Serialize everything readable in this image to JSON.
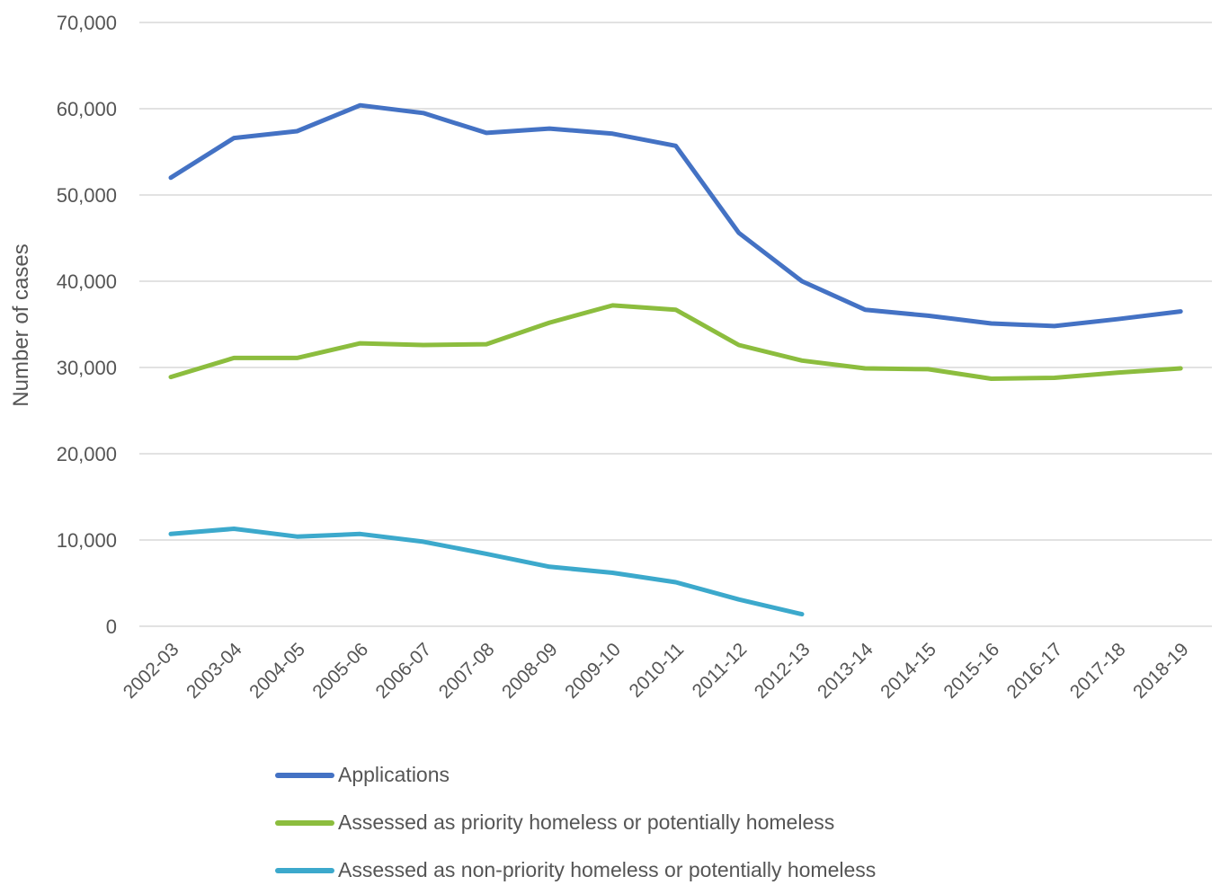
{
  "chart_data": {
    "type": "line",
    "title": "",
    "xlabel": "",
    "ylabel": "Number of cases",
    "ylim": [
      0,
      70000
    ],
    "yticks": [
      "0",
      "10,000",
      "20,000",
      "30,000",
      "40,000",
      "50,000",
      "60,000",
      "70,000"
    ],
    "ytick_values": [
      0,
      10000,
      20000,
      30000,
      40000,
      50000,
      60000,
      70000
    ],
    "grid": true,
    "legend_position": "bottom",
    "categories": [
      "2002-03",
      "2003-04",
      "2004-05",
      "2005-06",
      "2006-07",
      "2007-08",
      "2008-09",
      "2009-10",
      "2010-11",
      "2011-12",
      "2012-13",
      "2013-14",
      "2014-15",
      "2015-16",
      "2016-17",
      "2017-18",
      "2018-19"
    ],
    "series": [
      {
        "name": "Applications",
        "color": "#4472c4",
        "values": [
          52000,
          56600,
          57400,
          60400,
          59500,
          57200,
          57700,
          57100,
          55700,
          45600,
          40000,
          36700,
          36000,
          35100,
          34800,
          35600,
          36500
        ]
      },
      {
        "name": "Assessed as priority homeless or potentially homeless",
        "color": "#8cbd3e",
        "values": [
          28900,
          31100,
          31100,
          32800,
          32600,
          32700,
          35200,
          37200,
          36700,
          32600,
          30800,
          29900,
          29800,
          28700,
          28800,
          29400,
          29900
        ]
      },
      {
        "name": "Assessed as non-priority homeless or potentially homeless",
        "color": "#3ca9cc",
        "values": [
          10700,
          11300,
          10400,
          10700,
          9800,
          8400,
          6900,
          6200,
          5100,
          3100,
          1400,
          null,
          null,
          null,
          null,
          null,
          null
        ]
      }
    ]
  }
}
